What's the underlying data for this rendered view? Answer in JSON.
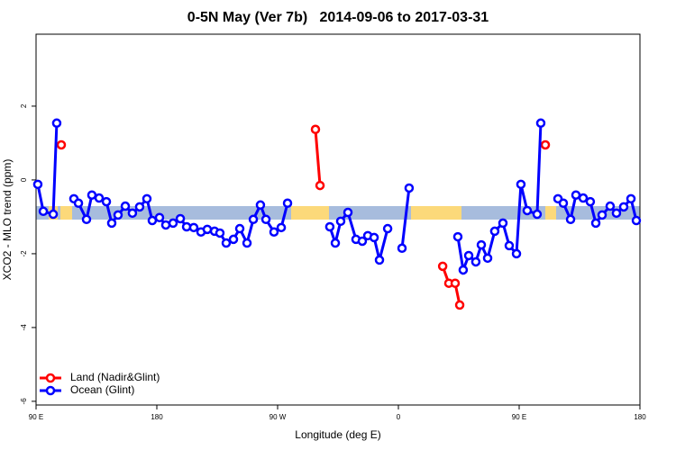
{
  "chart_data": {
    "type": "line",
    "title": "0-5N May (Ver 7b)   2014-09-06 to 2017-03-31",
    "x_label": "Longitude (deg E)",
    "y_label": "XCO2 - MLO trend (ppm)",
    "xlim": [
      90,
      540
    ],
    "ylim": [
      -6.1,
      3.95
    ],
    "xticks": [
      {
        "value": 90,
        "label": "90 E"
      },
      {
        "value": 180,
        "label": "180"
      },
      {
        "value": 270,
        "label": "90 W"
      },
      {
        "value": 360,
        "label": "0"
      },
      {
        "value": 450,
        "label": "90 E"
      },
      {
        "value": 540,
        "label": "180"
      }
    ],
    "yticks": [
      -6,
      -4,
      -2,
      0,
      2
    ],
    "legend": "bottom-left",
    "series": [
      {
        "name": "Land (Nadir&Glint)",
        "color": "#ff0000",
        "x": [
          108.8,
          null,
          298.2,
          301.6,
          null,
          393.0,
          397.6,
          402.3,
          405.7,
          null,
          469.5
        ],
        "values": [
          0.95,
          null,
          1.37,
          -0.15,
          null,
          -2.34,
          -2.8,
          -2.8,
          -3.39,
          null,
          0.95
        ]
      },
      {
        "name": "Ocean (Glint)",
        "color": "#0000ff",
        "x": [
          91.3,
          95.4,
          102.8,
          105.4,
          null,
          118.2,
          121.6,
          127.6,
          131.6,
          137.0,
          142.4,
          146.4,
          151.1,
          156.5,
          161.8,
          167.2,
          172.6,
          176.6,
          182.0,
          186.7,
          192.1,
          197.5,
          202.2,
          207.5,
          212.9,
          217.6,
          223.0,
          227.0,
          231.7,
          237.1,
          241.8,
          247.2,
          251.9,
          257.2,
          261.3,
          267.3,
          272.7,
          277.4,
          null,
          308.9,
          313.0,
          317.0,
          322.4,
          328.4,
          333.1,
          337.2,
          341.9,
          345.9,
          352.0,
          null,
          362.7,
          368.0,
          null,
          404.3,
          408.3,
          412.4,
          417.7,
          421.8,
          426.5,
          431.8,
          437.9,
          442.6,
          448.0,
          451.3,
          456.0,
          463.4,
          466.1,
          null,
          478.9,
          482.9,
          488.3,
          492.3,
          497.7,
          503.0,
          507.1,
          511.8,
          517.8,
          522.5,
          527.9,
          533.3,
          537.3
        ],
        "values": [
          -0.12,
          -0.85,
          -0.93,
          1.54,
          null,
          -0.51,
          -0.63,
          -1.07,
          -0.41,
          -0.49,
          -0.59,
          -1.17,
          -0.95,
          -0.71,
          -0.9,
          -0.73,
          -0.51,
          -1.1,
          -1.02,
          -1.22,
          -1.17,
          -1.05,
          -1.27,
          -1.29,
          -1.41,
          -1.34,
          -1.39,
          -1.44,
          -1.71,
          -1.61,
          -1.32,
          -1.71,
          -1.07,
          -0.68,
          -1.07,
          -1.41,
          -1.29,
          -0.63,
          null,
          -1.27,
          -1.71,
          -1.12,
          -0.88,
          -1.61,
          -1.66,
          -1.51,
          -1.56,
          -2.17,
          -1.32,
          null,
          -1.85,
          -0.22,
          null,
          -1.54,
          -2.44,
          -2.05,
          -2.22,
          -1.76,
          -2.12,
          -1.39,
          -1.17,
          -1.78,
          -2.0,
          -0.12,
          -0.83,
          -0.93,
          1.54,
          null,
          -0.51,
          -0.63,
          -1.07,
          -0.41,
          -0.49,
          -0.59,
          -1.17,
          -0.95,
          -0.71,
          -0.9,
          -0.73,
          -0.51,
          -1.1
        ]
      }
    ]
  }
}
